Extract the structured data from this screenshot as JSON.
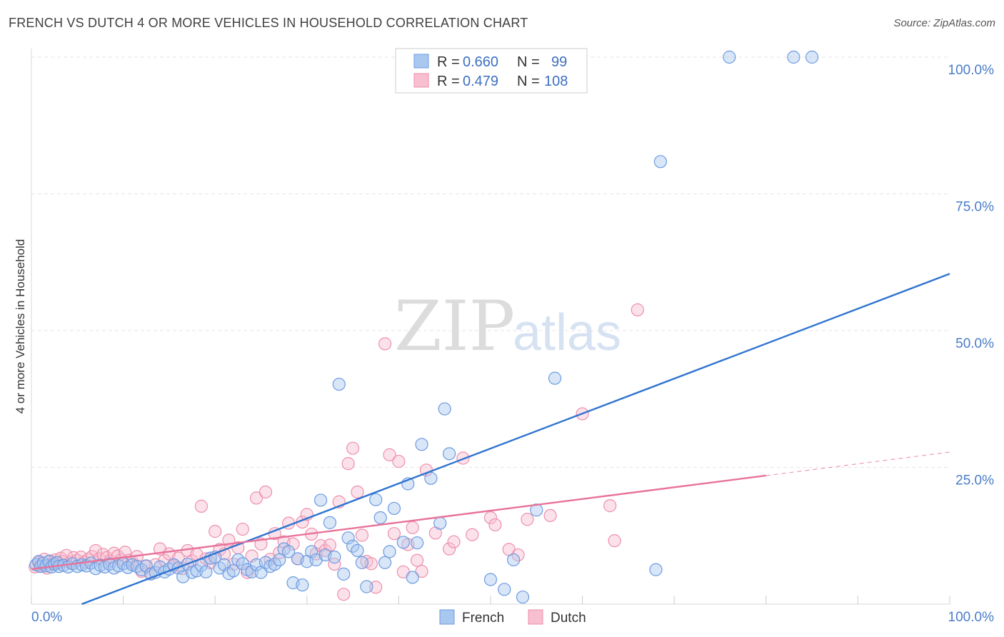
{
  "title": "FRENCH VS DUTCH 4 OR MORE VEHICLES IN HOUSEHOLD CORRELATION CHART",
  "source": "Source: ZipAtlas.com",
  "watermark": {
    "zip": "ZIP",
    "atlas": "atlas"
  },
  "colors": {
    "french_fill": "#a9c8f0",
    "french_stroke": "#6d9be0",
    "french_line": "#2f74d0",
    "dutch_fill": "#f7bfd0",
    "dutch_stroke": "#ee8fab",
    "dutch_line": "#e8729a",
    "grid": "#e4e4e4",
    "tick_text": "#4a7cc8"
  },
  "legend": {
    "rows": [
      {
        "series": "French",
        "r_label": "R =",
        "r_value": "0.660",
        "n_label": "N =",
        "n_value": "99"
      },
      {
        "series": "Dutch",
        "r_label": "R =",
        "r_value": "0.479",
        "n_label": "N =",
        "n_value": "108"
      }
    ]
  },
  "chart_data": {
    "type": "scatter",
    "title": "FRENCH VS DUTCH 4 OR MORE VEHICLES IN HOUSEHOLD CORRELATION CHART",
    "xlabel": "",
    "ylabel": "4 or more Vehicles in Household",
    "xlim": [
      0,
      100
    ],
    "ylim": [
      0,
      100
    ],
    "x_tick_labels": [
      "0.0%",
      "100.0%"
    ],
    "y_ticks": [
      25,
      50,
      75,
      100
    ],
    "y_tick_labels": [
      "25.0%",
      "50.0%",
      "75.0%",
      "100.0%"
    ],
    "grid": true,
    "legend_position": "top-center",
    "series": [
      {
        "name": "French",
        "r": 0.66,
        "n": 99,
        "trend": {
          "x": [
            0,
            100
          ],
          "y": [
            -3.5,
            60.4
          ]
        },
        "points": [
          [
            0.5,
            7.2
          ],
          [
            0.8,
            7.8
          ],
          [
            1.0,
            6.9
          ],
          [
            1.3,
            7.5
          ],
          [
            1.6,
            7.0
          ],
          [
            1.9,
            7.8
          ],
          [
            2.2,
            6.8
          ],
          [
            2.5,
            7.3
          ],
          [
            2.8,
            7.6
          ],
          [
            3.0,
            6.9
          ],
          [
            3.5,
            7.1
          ],
          [
            4.0,
            6.8
          ],
          [
            4.5,
            7.4
          ],
          [
            5.0,
            6.9
          ],
          [
            5.5,
            7.2
          ],
          [
            6.0,
            7.0
          ],
          [
            6.5,
            7.5
          ],
          [
            7.0,
            6.5
          ],
          [
            7.5,
            7.1
          ],
          [
            8.0,
            6.8
          ],
          [
            8.5,
            7.3
          ],
          [
            9.0,
            6.6
          ],
          [
            9.5,
            7.0
          ],
          [
            10.0,
            7.4
          ],
          [
            10.5,
            6.7
          ],
          [
            11.0,
            7.2
          ],
          [
            11.5,
            6.9
          ],
          [
            12.0,
            6.3
          ],
          [
            12.5,
            7.0
          ],
          [
            13.0,
            5.5
          ],
          [
            13.5,
            5.8
          ],
          [
            14.0,
            6.8
          ],
          [
            14.5,
            5.9
          ],
          [
            15.0,
            6.4
          ],
          [
            15.5,
            7.2
          ],
          [
            16.0,
            6.6
          ],
          [
            16.5,
            5.0
          ],
          [
            17.0,
            7.3
          ],
          [
            17.5,
            5.8
          ],
          [
            18.0,
            6.1
          ],
          [
            18.5,
            7.1
          ],
          [
            19.0,
            5.9
          ],
          [
            19.5,
            8.4
          ],
          [
            20.0,
            8.6
          ],
          [
            20.5,
            6.6
          ],
          [
            21.0,
            7.2
          ],
          [
            21.5,
            5.6
          ],
          [
            22.0,
            6.1
          ],
          [
            22.5,
            8.1
          ],
          [
            23.0,
            7.4
          ],
          [
            23.5,
            6.3
          ],
          [
            24.0,
            5.9
          ],
          [
            24.5,
            7.2
          ],
          [
            25.0,
            5.8
          ],
          [
            25.5,
            7.6
          ],
          [
            26.0,
            6.9
          ],
          [
            26.5,
            7.3
          ],
          [
            27.0,
            8.1
          ],
          [
            27.5,
            10.1
          ],
          [
            28.0,
            9.6
          ],
          [
            28.5,
            3.9
          ],
          [
            29.0,
            8.3
          ],
          [
            29.5,
            3.5
          ],
          [
            30.0,
            7.8
          ],
          [
            30.5,
            9.6
          ],
          [
            31.0,
            8.1
          ],
          [
            31.5,
            19.0
          ],
          [
            32.0,
            9.0
          ],
          [
            32.5,
            14.9
          ],
          [
            33.0,
            8.6
          ],
          [
            33.5,
            40.2
          ],
          [
            34.0,
            5.5
          ],
          [
            34.5,
            12.1
          ],
          [
            35.0,
            10.6
          ],
          [
            35.5,
            9.8
          ],
          [
            36.0,
            7.6
          ],
          [
            36.5,
            3.2
          ],
          [
            37.5,
            19.1
          ],
          [
            38.0,
            15.8
          ],
          [
            38.5,
            7.6
          ],
          [
            39.0,
            9.6
          ],
          [
            39.5,
            17.5
          ],
          [
            40.5,
            11.3
          ],
          [
            41.0,
            22.0
          ],
          [
            41.5,
            4.9
          ],
          [
            42.0,
            11.2
          ],
          [
            42.5,
            29.2
          ],
          [
            43.5,
            23.0
          ],
          [
            44.5,
            14.8
          ],
          [
            45.0,
            35.7
          ],
          [
            45.5,
            27.5
          ],
          [
            50.0,
            4.5
          ],
          [
            51.5,
            2.7
          ],
          [
            52.5,
            8.1
          ],
          [
            53.5,
            1.3
          ],
          [
            55.0,
            17.2
          ],
          [
            57.0,
            41.3
          ],
          [
            68.0,
            6.3
          ],
          [
            68.5,
            80.9
          ],
          [
            76.0,
            100
          ],
          [
            83.0,
            100
          ],
          [
            85.0,
            100
          ]
        ]
      },
      {
        "name": "Dutch",
        "r": 0.479,
        "n": 108,
        "trend": {
          "x": [
            0,
            80,
            100
          ],
          "y": [
            6.4,
            23.5,
            27.8
          ]
        },
        "points": [
          [
            0.4,
            6.8
          ],
          [
            0.8,
            7.6
          ],
          [
            1.1,
            7.0
          ],
          [
            1.4,
            8.2
          ],
          [
            1.7,
            6.6
          ],
          [
            2.0,
            7.9
          ],
          [
            2.3,
            7.4
          ],
          [
            2.6,
            8.1
          ],
          [
            2.9,
            7.5
          ],
          [
            3.2,
            8.4
          ],
          [
            3.5,
            7.8
          ],
          [
            3.8,
            8.9
          ],
          [
            4.2,
            7.6
          ],
          [
            4.6,
            8.5
          ],
          [
            5.0,
            8.0
          ],
          [
            5.4,
            8.6
          ],
          [
            5.8,
            7.7
          ],
          [
            6.2,
            8.2
          ],
          [
            6.6,
            8.7
          ],
          [
            7.0,
            9.8
          ],
          [
            7.4,
            8.3
          ],
          [
            7.8,
            9.1
          ],
          [
            8.2,
            8.5
          ],
          [
            8.6,
            7.9
          ],
          [
            9.0,
            9.3
          ],
          [
            9.4,
            8.8
          ],
          [
            9.8,
            8.1
          ],
          [
            10.2,
            9.5
          ],
          [
            10.6,
            8.0
          ],
          [
            11.0,
            7.6
          ],
          [
            11.5,
            8.7
          ],
          [
            12.0,
            6.0
          ],
          [
            12.5,
            6.9
          ],
          [
            13.0,
            5.6
          ],
          [
            13.5,
            7.2
          ],
          [
            14.0,
            10.1
          ],
          [
            14.5,
            8.0
          ],
          [
            15.0,
            9.2
          ],
          [
            15.5,
            7.0
          ],
          [
            16.0,
            8.4
          ],
          [
            16.5,
            6.5
          ],
          [
            17.0,
            9.8
          ],
          [
            17.5,
            7.9
          ],
          [
            18.0,
            9.1
          ],
          [
            18.5,
            17.9
          ],
          [
            19.0,
            8.3
          ],
          [
            19.5,
            7.6
          ],
          [
            20.0,
            13.3
          ],
          [
            20.5,
            10.0
          ],
          [
            21.0,
            9.2
          ],
          [
            21.5,
            11.7
          ],
          [
            22.0,
            7.3
          ],
          [
            22.5,
            10.3
          ],
          [
            23.0,
            13.7
          ],
          [
            23.5,
            5.8
          ],
          [
            24.0,
            8.8
          ],
          [
            24.5,
            19.4
          ],
          [
            25.0,
            11.0
          ],
          [
            25.5,
            20.5
          ],
          [
            26.0,
            8.2
          ],
          [
            26.5,
            12.9
          ],
          [
            27.0,
            9.4
          ],
          [
            27.5,
            11.4
          ],
          [
            28.0,
            14.8
          ],
          [
            28.5,
            11.0
          ],
          [
            29.0,
            8.3
          ],
          [
            29.5,
            15.0
          ],
          [
            30.0,
            16.4
          ],
          [
            30.5,
            12.8
          ],
          [
            31.0,
            9.2
          ],
          [
            31.5,
            10.7
          ],
          [
            32.0,
            9.8
          ],
          [
            32.5,
            10.8
          ],
          [
            33.0,
            7.3
          ],
          [
            33.5,
            18.7
          ],
          [
            34.0,
            1.8
          ],
          [
            34.5,
            25.7
          ],
          [
            35.0,
            28.5
          ],
          [
            35.5,
            20.5
          ],
          [
            36.0,
            12.6
          ],
          [
            36.5,
            7.8
          ],
          [
            37.0,
            7.4
          ],
          [
            37.5,
            3.1
          ],
          [
            38.5,
            47.6
          ],
          [
            39.0,
            27.3
          ],
          [
            39.5,
            12.9
          ],
          [
            40.0,
            26.1
          ],
          [
            40.5,
            5.9
          ],
          [
            41.0,
            10.9
          ],
          [
            41.5,
            14.0
          ],
          [
            42.0,
            8.0
          ],
          [
            42.5,
            6.0
          ],
          [
            43.0,
            24.5
          ],
          [
            44.0,
            13.0
          ],
          [
            45.5,
            10.1
          ],
          [
            46.0,
            11.4
          ],
          [
            47.0,
            26.7
          ],
          [
            48.0,
            12.7
          ],
          [
            50.0,
            15.8
          ],
          [
            50.5,
            14.5
          ],
          [
            52.0,
            10.0
          ],
          [
            53.0,
            9.0
          ],
          [
            54.0,
            15.5
          ],
          [
            56.5,
            16.2
          ],
          [
            60.0,
            34.8
          ],
          [
            63.0,
            18.0
          ],
          [
            63.5,
            11.6
          ],
          [
            66.0,
            53.8
          ]
        ]
      }
    ]
  },
  "bottom_legend": [
    {
      "series": "French",
      "label": "French"
    },
    {
      "series": "Dutch",
      "label": "Dutch"
    }
  ]
}
